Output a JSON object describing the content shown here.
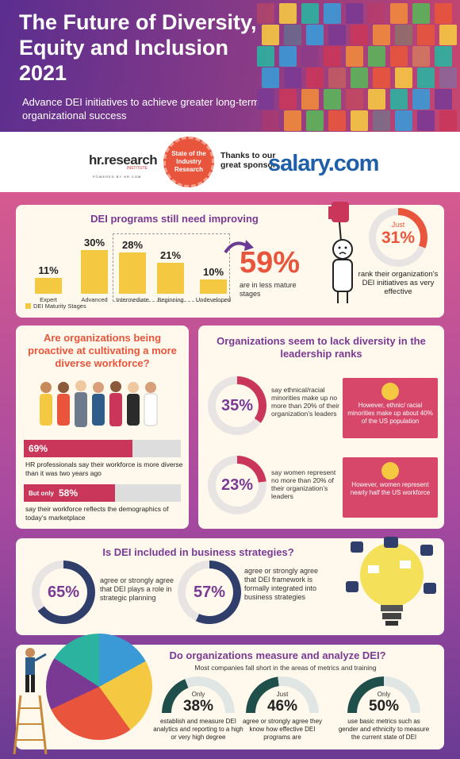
{
  "header": {
    "title": "The Future of Diversity, Equity and Inclusion 2021",
    "subtitle": "Advance DEI initiatives to achieve greater long-term organizational success"
  },
  "sponsor": {
    "logo_text": "hr.research",
    "logo_institute": "INSTITUTE",
    "logo_powered": "POWERED BY HR.COM",
    "seal_text": "State of the Industry Research",
    "thanks_text": "Thanks to our great sponsor",
    "sponsor_name": "salary.com"
  },
  "s1": {
    "title": "DEI programs still need improving",
    "bars": [
      {
        "label": "Expert",
        "pct": "11%",
        "value": 11
      },
      {
        "label": "Advanced",
        "pct": "30%",
        "value": 30
      },
      {
        "label": "Intermediate",
        "pct": "28%",
        "value": 28
      },
      {
        "label": "Beginning",
        "pct": "21%",
        "value": 21
      },
      {
        "label": "Undeveloped",
        "pct": "10%",
        "value": 10
      }
    ],
    "legend": "DEI Maturity Stages",
    "big_pct": "59%",
    "big_sub": "are in less mature stages",
    "just_label": "Just",
    "just_pct": "31%",
    "just_value": 31,
    "rank_text": "rank their organization’s DEI initiatives as very effective"
  },
  "s2": {
    "title": "Are organizations being proactive at cultivating a more diverse workforce?",
    "stat1_pct": "69%",
    "stat1_value": 69,
    "stat1_text": "HR professionals say their workforce is more diverse than it was two years ago",
    "stat2_prefix": "But only",
    "stat2_pct": "58%",
    "stat2_value": 58,
    "stat2_text": "say their workforce reflects the demographics of today’s marketplace"
  },
  "s3": {
    "title": "Organizations seem to lack diversity in the leadership ranks",
    "stat1_pct": "35%",
    "stat1_value": 35,
    "stat1_text": "say ethnical/racial minorities make up no more than 20% of their organization’s leaders",
    "box1": "However, ethnic/ racial minorities make up about 40% of the US population",
    "stat2_pct": "23%",
    "stat2_value": 23,
    "stat2_text": "say women represent no more than 20% of their organization’s leaders",
    "box2": "However, women represent nearly half the US workforce"
  },
  "s4": {
    "title": "Is DEI included in business strategies?",
    "stat1_pct": "65%",
    "stat1_value": 65,
    "stat1_text": "agree or strongly agree that DEI plays a role in strategic planning",
    "stat2_pct": "57%",
    "stat2_value": 57,
    "stat2_text": "agree or strongly agree that DEI framework is formally integrated into business strategies"
  },
  "s5": {
    "title": "Do organizations measure and analyze DEI?",
    "subtitle": "Most companies fall short in the areas of metrics and training",
    "items": [
      {
        "label": "Only",
        "pct": "38%",
        "value": 38,
        "text": "establish and measure DEI analytics and reporting to a high or very high degree"
      },
      {
        "label": "Just",
        "pct": "46%",
        "value": 46,
        "text": "agree or strongly agree they know how effective DEI programs are"
      },
      {
        "label": "Only",
        "pct": "50%",
        "value": 50,
        "text": "use basic metrics such as gender and ethnicity to measure the current state of DEI"
      }
    ]
  }
}
